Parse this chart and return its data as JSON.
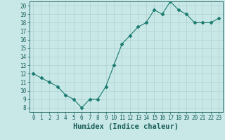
{
  "x": [
    0,
    1,
    2,
    3,
    4,
    5,
    6,
    7,
    8,
    9,
    10,
    11,
    12,
    13,
    14,
    15,
    16,
    17,
    18,
    19,
    20,
    21,
    22,
    23
  ],
  "y": [
    12,
    11.5,
    11,
    10.5,
    9.5,
    9,
    8,
    9,
    9,
    10.5,
    13,
    15.5,
    16.5,
    17.5,
    18,
    19.5,
    19,
    20.5,
    19.5,
    19,
    18,
    18,
    18,
    18.5
  ],
  "line_color": "#1a7a6e",
  "marker": "D",
  "marker_size": 2.5,
  "bg_color": "#c8e8e8",
  "grid_color": "#b0d0d0",
  "xlabel": "Humidex (Indice chaleur)",
  "xlim": [
    -0.5,
    23.5
  ],
  "ylim": [
    7.5,
    20.5
  ],
  "yticks": [
    8,
    9,
    10,
    11,
    12,
    13,
    14,
    15,
    16,
    17,
    18,
    19,
    20
  ],
  "xticks": [
    0,
    1,
    2,
    3,
    4,
    5,
    6,
    7,
    8,
    9,
    10,
    11,
    12,
    13,
    14,
    15,
    16,
    17,
    18,
    19,
    20,
    21,
    22,
    23
  ],
  "font_color": "#1a5f5a",
  "tick_fontsize": 5.5,
  "label_fontsize": 7.5
}
